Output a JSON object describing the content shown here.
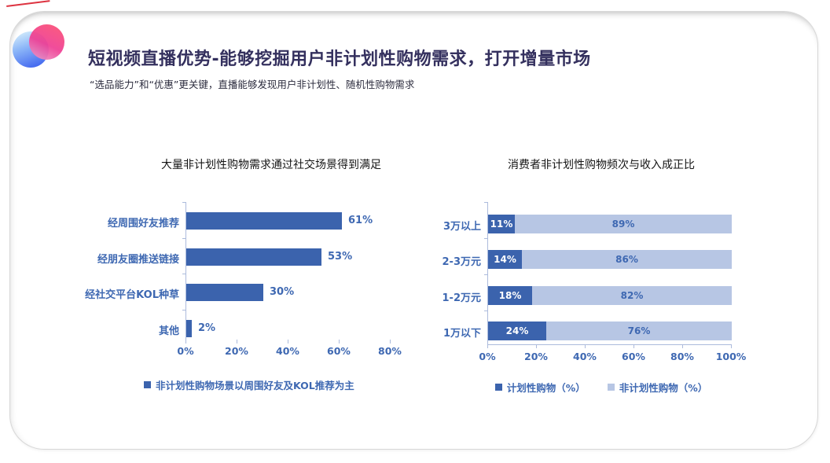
{
  "slide": {
    "title": "短视频直播优势-能够挖掘用户非计划性购物需求，打开增量市场",
    "subtitle": "“选品能力”和“优惠”更关键，直播能够发现用户非计划性、随机性购物需求",
    "logo": "overlapping-blue-pink-circles"
  },
  "colors": {
    "title_text": "#34305e",
    "dark_bar": "#3b63ad",
    "light_bar": "#b7c6e4",
    "label_blue": "#3e68b2",
    "axis_line": "#acbbdc",
    "accent_red": "#dd3340"
  },
  "chart_data": [
    {
      "type": "bar",
      "orientation": "horizontal",
      "title": "大量非计划性购物需求通过社交场景得到满足",
      "categories": [
        "经周围好友推荐",
        "经朋友圈推送链接",
        "经社交平台KOL种草",
        "其他"
      ],
      "values": [
        61,
        53,
        30,
        2
      ],
      "value_labels": [
        "61%",
        "53%",
        "30%",
        "2%"
      ],
      "x_ticks": [
        "0%",
        "20%",
        "40%",
        "60%",
        "80%"
      ],
      "xlim": [
        0,
        80
      ],
      "grid": false,
      "legend_position": "bottom",
      "legend": [
        "非计划性购物场景以周围好友及KOL推荐为主"
      ]
    },
    {
      "type": "bar",
      "orientation": "horizontal",
      "stacked": true,
      "title": "消费者非计划性购物频次与收入成正比",
      "categories": [
        "3万以上",
        "2-3万元",
        "1-2万元",
        "1万以下"
      ],
      "series": [
        {
          "name": "计划性购物（%）",
          "values": [
            11,
            14,
            18,
            24
          ],
          "value_labels": [
            "11%",
            "14%",
            "18%",
            "24%"
          ]
        },
        {
          "name": "非计划性购物（%）",
          "values": [
            89,
            86,
            82,
            76
          ],
          "value_labels": [
            "89%",
            "86%",
            "82%",
            "76%"
          ]
        }
      ],
      "x_ticks": [
        "0%",
        "20%",
        "40%",
        "60%",
        "80%",
        "100%"
      ],
      "xlim": [
        0,
        100
      ],
      "grid": false,
      "legend_position": "bottom"
    }
  ]
}
